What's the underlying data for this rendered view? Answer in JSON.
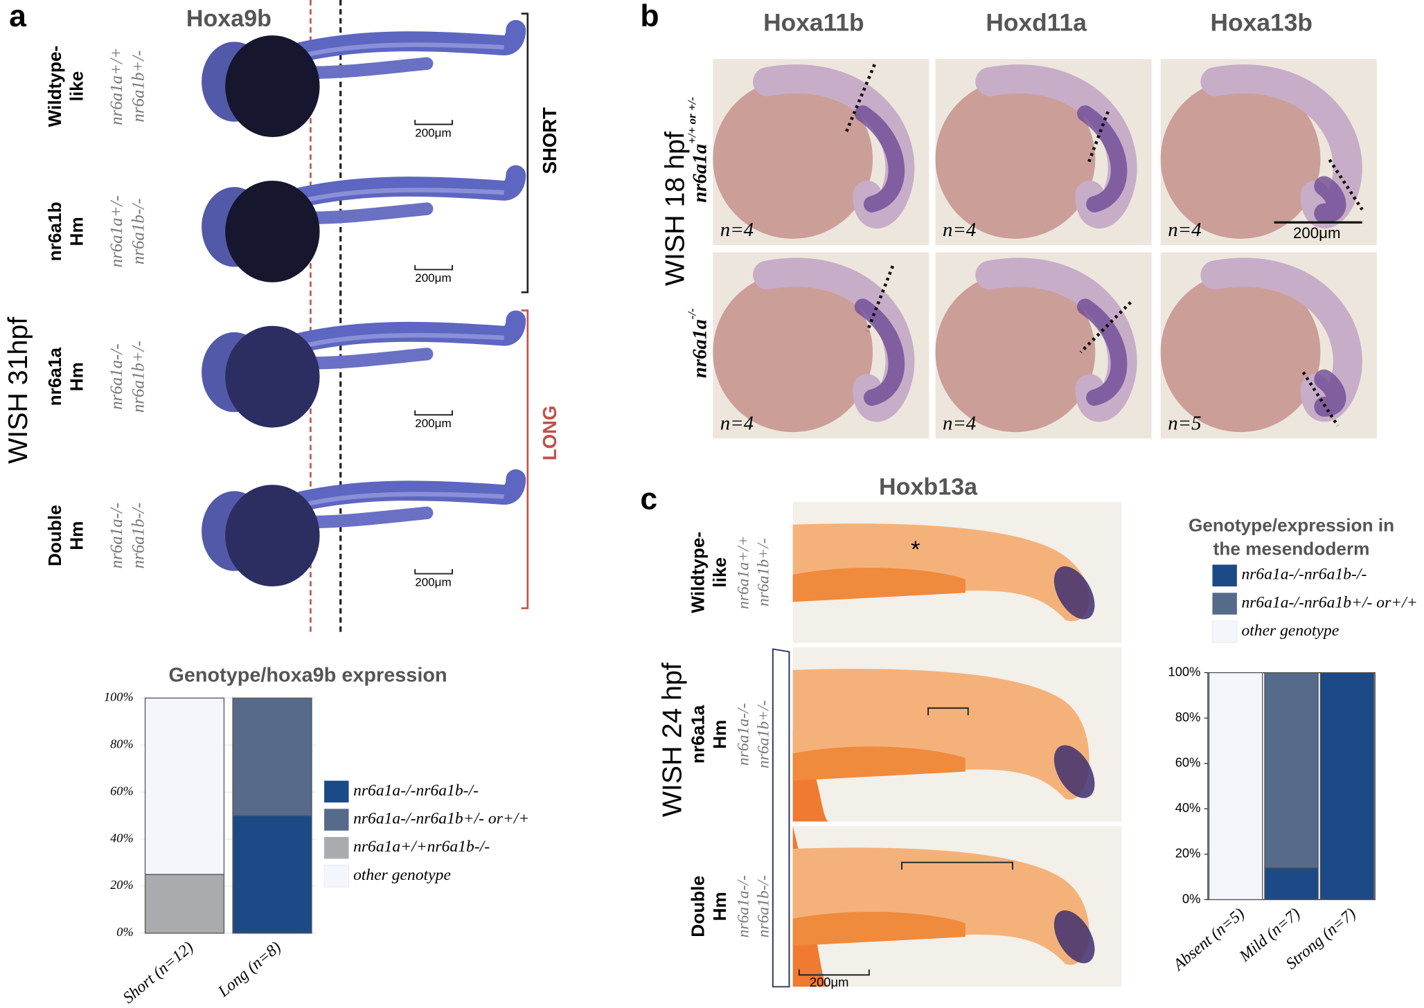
{
  "panel_a": {
    "letter": "a",
    "title": "Hoxa9b",
    "stage": "WISH 31hpf",
    "brackets": [
      "SHORT",
      "LONG"
    ],
    "rows": [
      {
        "group": [
          "Wildtype-",
          "like"
        ],
        "genotype": [
          "nr6a1a+/+",
          "nr6a1b+/-"
        ],
        "scale": "200μm"
      },
      {
        "group": [
          "nr6a1b",
          "Hm"
        ],
        "genotype": [
          "nr6a1a+/-",
          "nr6a1b-/-"
        ],
        "scale": "200μm"
      },
      {
        "group": [
          "nr6a1a",
          "Hm"
        ],
        "genotype": [
          "nr6a1a-/-",
          "nr6a1b+/-"
        ],
        "scale": "200μm"
      },
      {
        "group": [
          "Double",
          "Hm"
        ],
        "genotype": [
          "nr6a1a-/-",
          "nr6a1b-/-"
        ],
        "scale": "200μm"
      }
    ]
  },
  "panel_b": {
    "letter": "b",
    "stage": "WISH  18 hpf",
    "columns": [
      "Hoxa11b",
      "Hoxd11a",
      "Hoxa13b"
    ],
    "rows": [
      {
        "genotype": "nr6a1a",
        "superscript": "+/+ or +/-",
        "n": [
          "n=4",
          "n=4",
          "n=4"
        ]
      },
      {
        "genotype": "nr6a1a",
        "superscript": "-/-",
        "n": [
          "n=4",
          "n=4",
          "n=5"
        ]
      }
    ],
    "scale": "200μm"
  },
  "panel_c": {
    "letter": "c",
    "title": "Hoxb13a",
    "stage": "WISH  24 hpf",
    "asterisk": "*",
    "scale": "200μm",
    "rows": [
      {
        "group": [
          "Wildtype-",
          "like"
        ],
        "genotype": [
          "nr6a1a+/+",
          "nr6a1b+/-"
        ]
      },
      {
        "group": [
          "nr6a1a",
          "Hm"
        ],
        "genotype": [
          "nr6a1a-/-",
          "nr6a1b+/-"
        ]
      },
      {
        "group": [
          "Double",
          "Hm"
        ],
        "genotype": [
          "nr6a1a-/-",
          "nr6a1b-/-"
        ]
      }
    ]
  },
  "chart_data": [
    {
      "type": "stacked_bar",
      "title": [
        "Genotype/hoxa9b expression"
      ],
      "categories": [
        "Short (n=12)",
        "Long (n=8)"
      ],
      "series": [
        {
          "name": "nr6a1a-/-nr6a1b-/-",
          "color": "#1b4a87",
          "values": [
            0,
            50
          ]
        },
        {
          "name": "nr6a1a-/-nr6a1b+/- or+/+",
          "color": "#566a8a",
          "values": [
            0,
            50
          ]
        },
        {
          "name": "nr6a1a+/+nr6a1b-/-",
          "color": "#a9abae",
          "values": [
            25,
            0
          ]
        },
        {
          "name": "other genotype",
          "color": "#f5f6fc",
          "values": [
            75,
            0
          ]
        }
      ],
      "ylim": [
        0,
        100
      ],
      "yticks": [
        {
          "value": 0,
          "label": "0%"
        },
        {
          "value": 20,
          "label": "20%"
        },
        {
          "value": 40,
          "label": "40%"
        },
        {
          "value": 60,
          "label": "60%"
        },
        {
          "value": 80,
          "label": "80%"
        },
        {
          "value": 100,
          "label": "100%"
        }
      ],
      "grid": true,
      "legend": "right"
    },
    {
      "type": "stacked_bar",
      "title": [
        "Genotype/expression in",
        "the mesendoderm"
      ],
      "categories": [
        "Absent (n=5)",
        "Mild (n=7)",
        "Strong (n=7)"
      ],
      "series": [
        {
          "name": "nr6a1a-/-nr6a1b-/-",
          "color": "#1b4a87",
          "values": [
            0,
            14,
            100
          ]
        },
        {
          "name": "nr6a1a-/-nr6a1b+/- or+/+",
          "color": "#566a8a",
          "values": [
            0,
            86,
            0
          ]
        },
        {
          "name": "other genotype",
          "color": "#f5f6fc",
          "values": [
            100,
            0,
            0
          ]
        }
      ],
      "ylim": [
        0,
        100
      ],
      "yticks": [
        {
          "value": 0,
          "label": "0%"
        },
        {
          "value": 20,
          "label": "20%"
        },
        {
          "value": 40,
          "label": "40%"
        },
        {
          "value": 60,
          "label": "60%"
        },
        {
          "value": 80,
          "label": "80%"
        },
        {
          "value": 100,
          "label": "100%"
        }
      ],
      "grid": false,
      "legend": "top"
    }
  ]
}
